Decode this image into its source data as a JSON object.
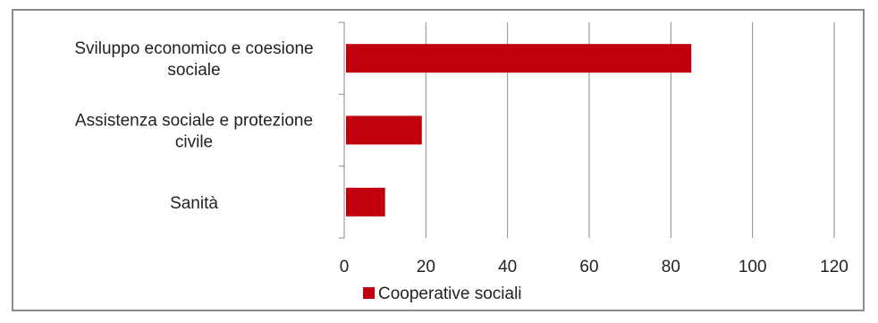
{
  "chart_data": {
    "type": "bar",
    "orientation": "horizontal",
    "categories": [
      [
        "Sviluppo economico e coesione",
        "sociale"
      ],
      [
        "Assistenza sociale e protezione",
        "civile"
      ],
      [
        "Sanità"
      ]
    ],
    "series": [
      {
        "name": "Cooperative sociali",
        "values": [
          85,
          19,
          10
        ],
        "color": "#c0000c"
      }
    ],
    "xlim": [
      0,
      120
    ],
    "xticks": [
      "0",
      "20",
      "40",
      "60",
      "80",
      "100",
      "120"
    ],
    "grid": true,
    "legend_position": "bottom-left"
  }
}
